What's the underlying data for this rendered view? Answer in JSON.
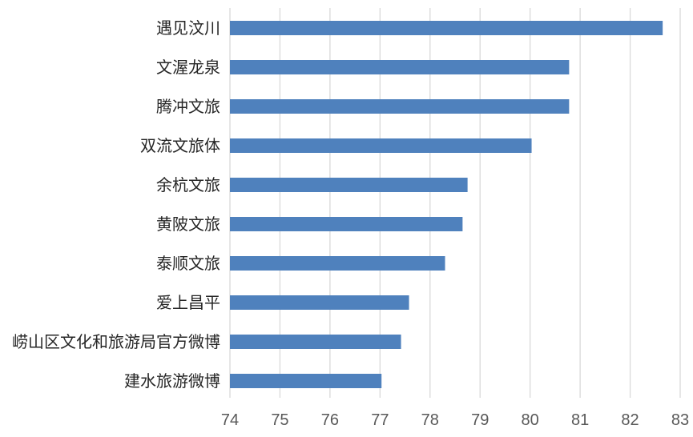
{
  "chart_data": {
    "type": "bar",
    "orientation": "horizontal",
    "categories": [
      "遇见汶川",
      "文渥龙泉",
      "腾冲文旅",
      "双流文旅体",
      "余杭文旅",
      "黄陂文旅",
      "泰顺文旅",
      "爱上昌平",
      "崂山区文化和旅游局官方微博",
      "建水旅游微博"
    ],
    "values": [
      82.65,
      80.78,
      80.78,
      80.03,
      78.75,
      78.65,
      78.3,
      77.58,
      77.42,
      77.03
    ],
    "xlim": [
      74,
      83
    ],
    "xticks": [
      "74",
      "75",
      "76",
      "77",
      "78",
      "79",
      "80",
      "81",
      "82",
      "83"
    ],
    "grid": true,
    "legend": "none",
    "title": "",
    "xlabel": "",
    "ylabel": "",
    "colors": {
      "bar": "#4f81bd",
      "grid": "#d9d9d9"
    }
  }
}
